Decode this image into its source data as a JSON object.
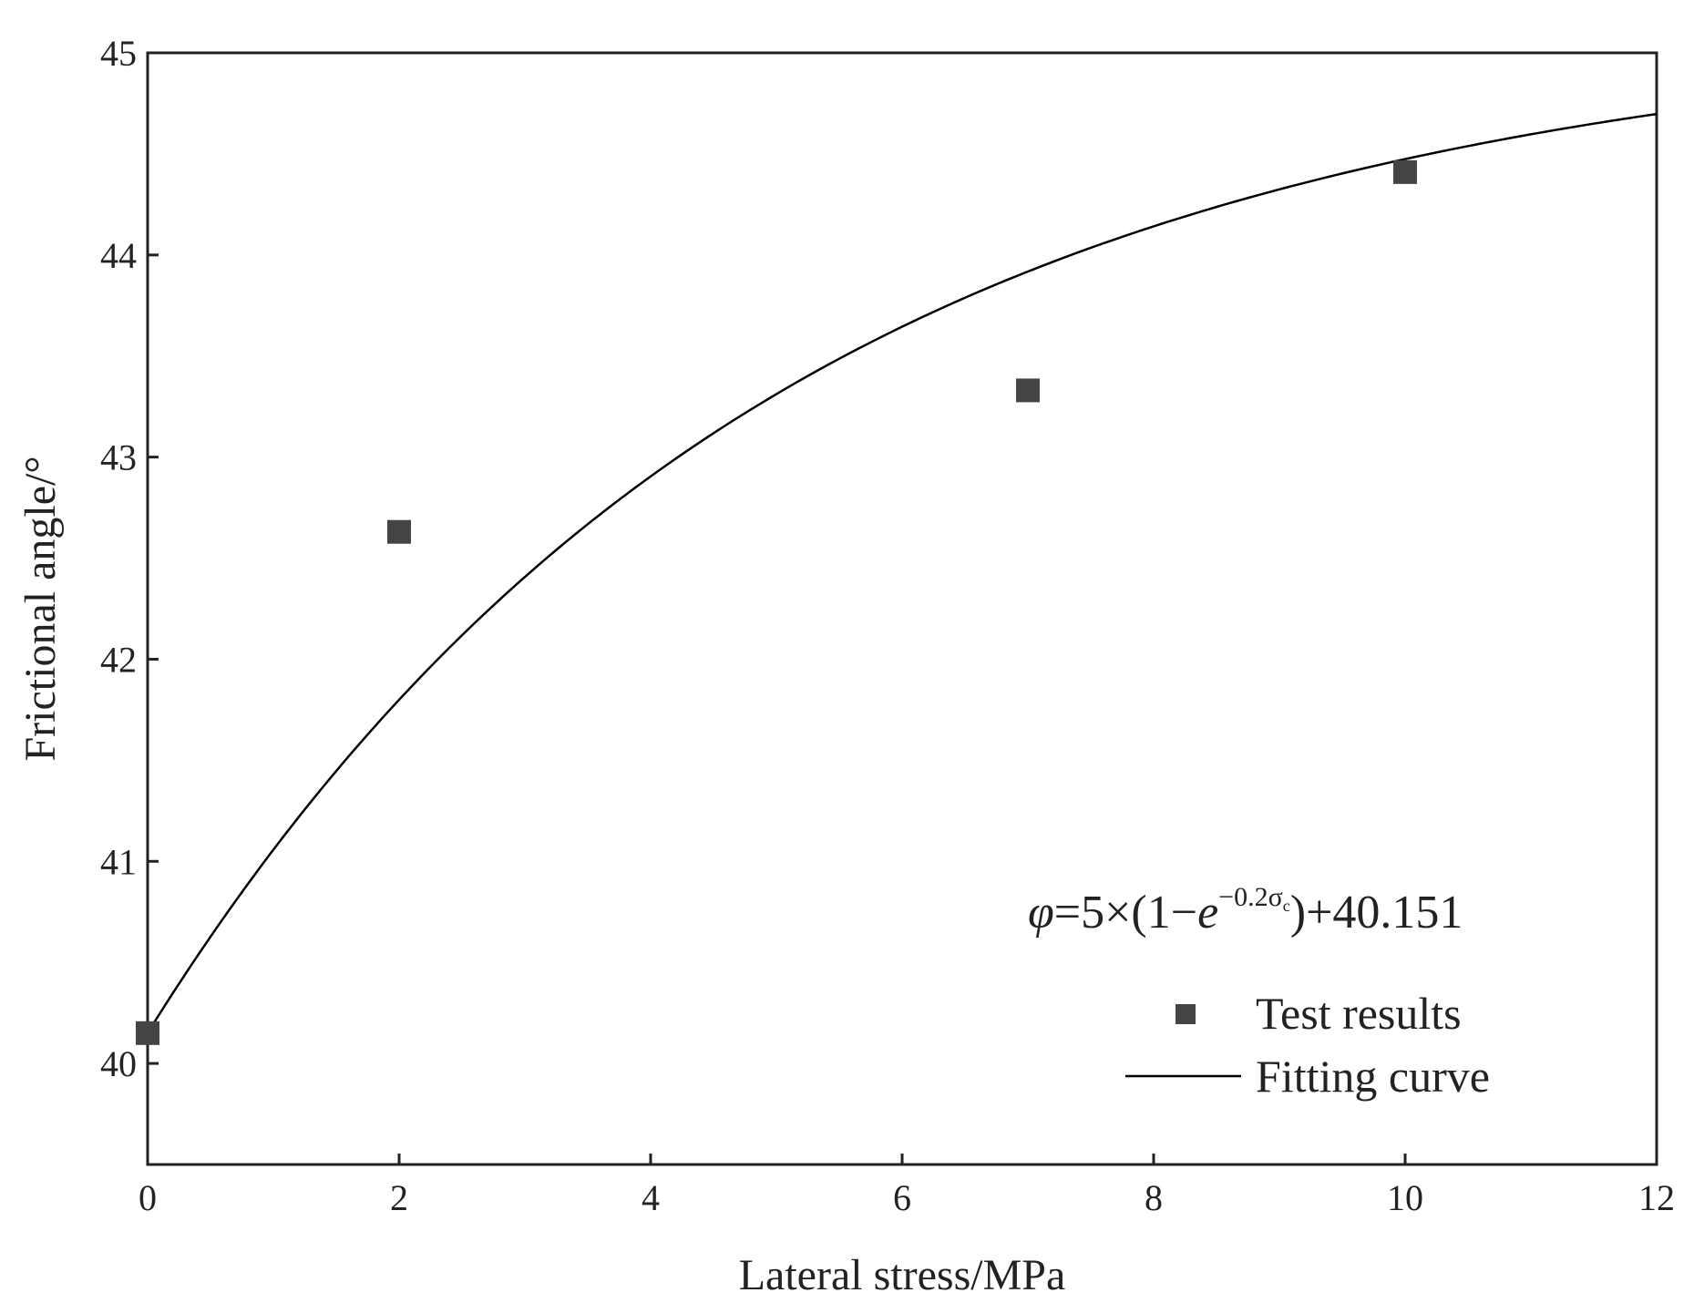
{
  "chart_data": {
    "type": "scatter",
    "xlabel": "Lateral stress/MPa",
    "ylabel": "Frictional angle/°",
    "xlim": [
      0,
      12
    ],
    "ylim": [
      39.5,
      45
    ],
    "x_ticks": [
      0,
      2,
      4,
      6,
      8,
      10,
      12
    ],
    "y_ticks": [
      40,
      41,
      42,
      43,
      44,
      45
    ],
    "grid": false,
    "legend_position": "bottom-right",
    "series": [
      {
        "name": "Test results",
        "type": "scatter",
        "marker": "square",
        "color": "#444444",
        "points": [
          {
            "x": 0,
            "y": 40.15
          },
          {
            "x": 2,
            "y": 42.63
          },
          {
            "x": 7,
            "y": 43.33
          },
          {
            "x": 10,
            "y": 44.41
          }
        ]
      },
      {
        "name": "Fitting curve",
        "type": "line",
        "color": "#000000",
        "formula": {
          "amplitude": 5,
          "rate": 0.2,
          "offset": 40.151
        }
      }
    ],
    "annotation": {
      "phi": "φ",
      "middle": "=5×(1−",
      "e": "e",
      "exponent": "−0.2σ",
      "exponent_sub": "c",
      "tail": ")+40.151"
    }
  }
}
